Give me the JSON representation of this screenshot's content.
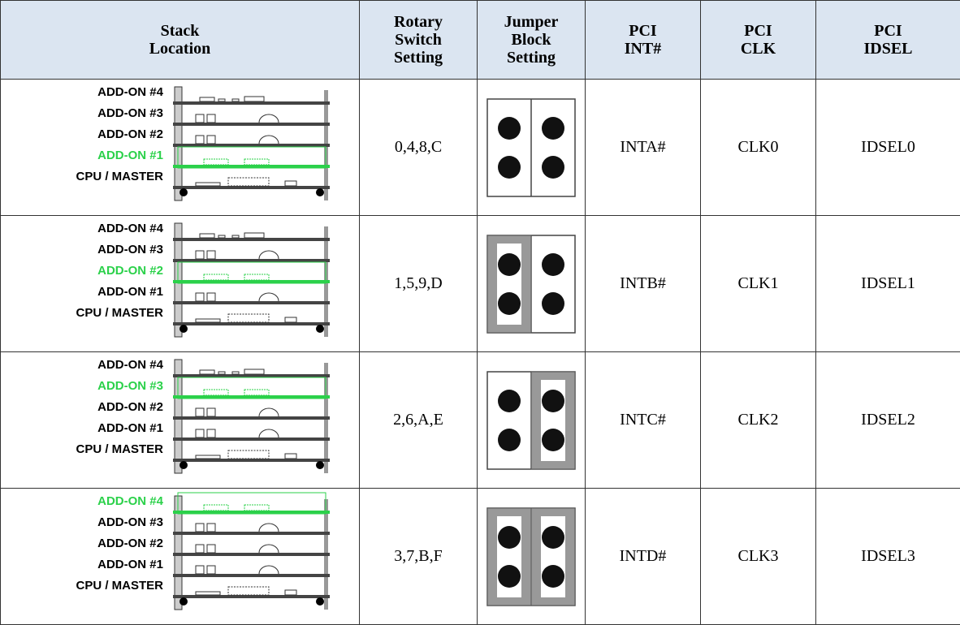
{
  "table": {
    "header": [
      "Stack Location",
      "Rotary Switch Setting",
      "Jumper Block Setting",
      "PCI INT#",
      "PCI CLK",
      "PCI IDSEL"
    ],
    "rows": [
      {
        "stack": [
          "ADD-ON #4",
          "ADD-ON #3",
          "ADD-ON #2",
          "ADD-ON #1",
          "CPU / MASTER"
        ],
        "rotary": "0,4,8,C",
        "int": "INTA#",
        "clk": "CLK0",
        "idsel": "IDSEL0"
      },
      {
        "stack": [
          "ADD-ON #4",
          "ADD-ON #3",
          "ADD-ON #2",
          "ADD-ON #1",
          "CPU / MASTER"
        ],
        "rotary": "1,5,9,D",
        "int": "INTB#",
        "clk": "CLK1",
        "idsel": "IDSEL1"
      },
      {
        "stack": [
          "ADD-ON #4",
          "ADD-ON #3",
          "ADD-ON #2",
          "ADD-ON #1",
          "CPU / MASTER"
        ],
        "rotary": "2,6,A,E",
        "int": "INTC#",
        "clk": "CLK2",
        "idsel": "IDSEL2"
      },
      {
        "stack": [
          "ADD-ON #4",
          "ADD-ON #3",
          "ADD-ON #2",
          "ADD-ON #1",
          "CPU / MASTER"
        ],
        "rotary": "3,7,B,F",
        "int": "INTD#",
        "clk": "CLK3",
        "idsel": "IDSEL3"
      }
    ]
  }
}
